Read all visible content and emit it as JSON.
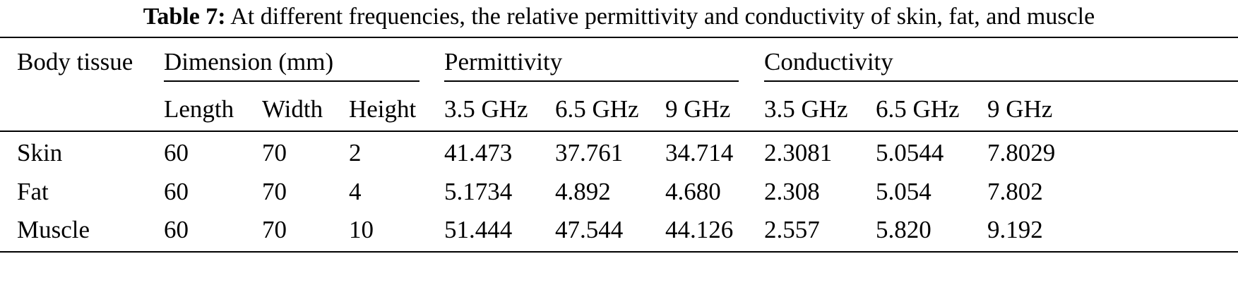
{
  "caption": {
    "label": "Table 7:",
    "text": "At different frequencies, the relative permittivity and conductivity of skin, fat, and muscle"
  },
  "header": {
    "tissue": "Body tissue",
    "dimension": "Dimension (mm)",
    "permittivity": "Permittivity",
    "conductivity": "Conductivity",
    "length": "Length",
    "width": "Width",
    "height": "Height",
    "perm_f1": "3.5 GHz",
    "perm_f2": "6.5 GHz",
    "perm_f3": "9 GHz",
    "cond_f1": "3.5 GHz",
    "cond_f2": "6.5 GHz",
    "cond_f3": "9 GHz"
  },
  "rows": [
    {
      "tissue": "Skin",
      "length": "60",
      "width": "70",
      "height": "2",
      "perm_35": "41.473",
      "perm_65": "37.761",
      "perm_9": "34.714",
      "cond_35": "2.3081",
      "cond_65": "5.0544",
      "cond_9": "7.8029"
    },
    {
      "tissue": "Fat",
      "length": "60",
      "width": "70",
      "height": "4",
      "perm_35": "5.1734",
      "perm_65": "4.892",
      "perm_9": "4.680",
      "cond_35": "2.308",
      "cond_65": "5.054",
      "cond_9": "7.802"
    },
    {
      "tissue": "Muscle",
      "length": "60",
      "width": "70",
      "height": "10",
      "perm_35": "51.444",
      "perm_65": "47.544",
      "perm_9": "44.126",
      "cond_35": "2.557",
      "cond_65": "5.820",
      "cond_9": "9.192"
    }
  ]
}
